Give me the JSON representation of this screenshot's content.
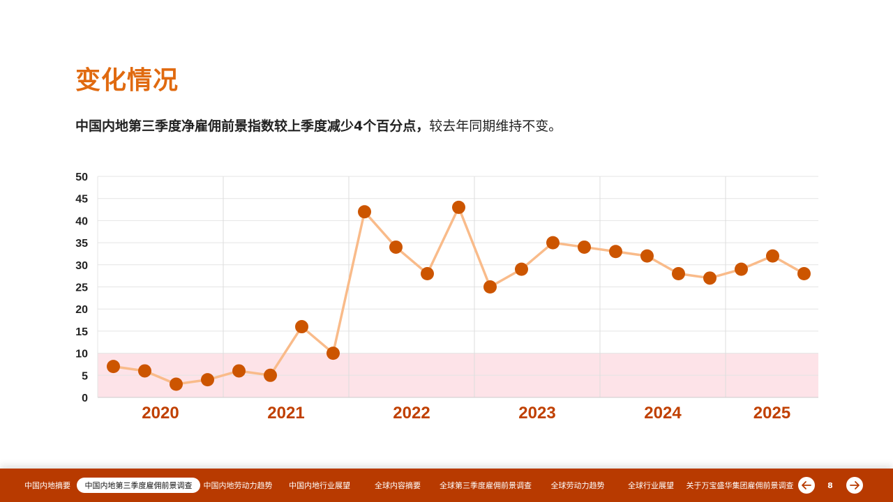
{
  "page": {
    "title": "变化情况",
    "subtitle_bold": "中国内地第三季度净雇佣前景指数较上季度减少4个百分点，",
    "subtitle_rest": "较去年同期维持不变。"
  },
  "colors": {
    "accent": "#e06a10",
    "footer_bg": "#b83a00",
    "point": "#cc5500",
    "line": "#f9bb8a",
    "band": "#fde3e8",
    "year_label": "#c04000"
  },
  "chart_data": {
    "type": "line",
    "ylim": [
      0,
      50
    ],
    "y_ticks": [
      "0",
      "5",
      "10",
      "15",
      "20",
      "25",
      "30",
      "35",
      "40",
      "45",
      "50"
    ],
    "highlight_band": [
      0,
      10
    ],
    "grid": true,
    "year_groups": [
      {
        "label": "2020",
        "count": 4
      },
      {
        "label": "2021",
        "count": 4
      },
      {
        "label": "2022",
        "count": 4
      },
      {
        "label": "2023",
        "count": 4
      },
      {
        "label": "2024",
        "count": 4
      },
      {
        "label": "2025",
        "count": 3
      }
    ],
    "values": [
      7,
      6,
      3,
      4,
      6,
      5,
      16,
      10,
      42,
      34,
      28,
      43,
      25,
      29,
      35,
      34,
      33,
      32,
      28,
      27,
      29,
      32,
      28
    ]
  },
  "footer": {
    "nav": [
      "中国内地摘要",
      "中国内地第三季度雇佣前景调查",
      "中国内地劳动力趋势",
      "中国内地行业展望",
      "全球内容摘要",
      "全球第三季度雇佣前景调查",
      "全球劳动力趋势",
      "全球行业展望",
      "关于万宝盛华集团雇佣前景调查"
    ],
    "active_index": 1,
    "page_number": "8",
    "prev_icon": "arrow-left-icon",
    "next_icon": "arrow-right-icon"
  }
}
